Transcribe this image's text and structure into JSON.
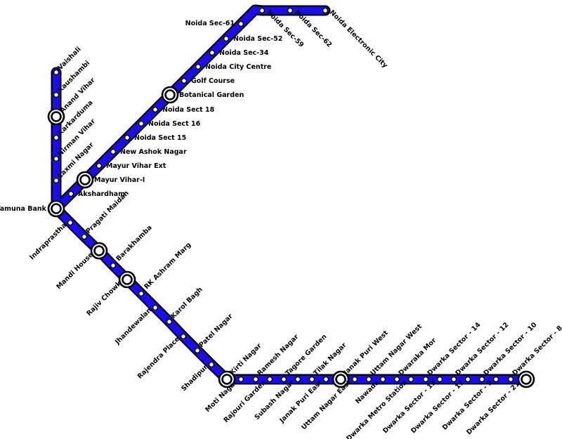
{
  "line_color": "#1a0ef0",
  "line_outline_color": "#000000",
  "stations": [
    {
      "id": "vaishali",
      "name": "Vaishali",
      "interchange": false
    },
    {
      "id": "kaushambi",
      "name": "Kaushambi",
      "interchange": false
    },
    {
      "id": "anand-vihar",
      "name": "Anand Vihar",
      "interchange": true
    },
    {
      "id": "karkarduma",
      "name": "Karkarduma",
      "interchange": false
    },
    {
      "id": "nirman-vihar",
      "name": "Nirman Vihar",
      "interchange": false
    },
    {
      "id": "laxmi-nagar",
      "name": "Laxmi Nagar",
      "interchange": false
    },
    {
      "id": "yamuna-bank",
      "name": "Yamuna Bank",
      "interchange": true
    },
    {
      "id": "akshardham",
      "name": "Akshardham",
      "interchange": false
    },
    {
      "id": "mayur-vihar-i",
      "name": "Mayur Vihar-I",
      "interchange": true
    },
    {
      "id": "mayur-vihar-ext",
      "name": "Mayur Vihar Ext",
      "interchange": false
    },
    {
      "id": "new-ashok-nagar",
      "name": "New Ashok Nagar",
      "interchange": false
    },
    {
      "id": "noida-sect-15",
      "name": "Noida Sect 15",
      "interchange": false
    },
    {
      "id": "noida-sect-16",
      "name": "Noida Sect 16",
      "interchange": false
    },
    {
      "id": "noida-sect-18",
      "name": "Noida Sect 18",
      "interchange": false
    },
    {
      "id": "botanical-garden",
      "name": "Botanical Garden",
      "interchange": true
    },
    {
      "id": "golf-course",
      "name": "Golf Course",
      "interchange": false
    },
    {
      "id": "noida-city-centre",
      "name": "Noida City Centre",
      "interchange": false
    },
    {
      "id": "noida-sec-34",
      "name": "Noida Sec-34",
      "interchange": false
    },
    {
      "id": "noida-sec-52",
      "name": "Noida Sec-52",
      "interchange": false
    },
    {
      "id": "noida-sec-61",
      "name": "Noida Sec-61",
      "interchange": false
    },
    {
      "id": "noida-sec-59",
      "name": "Noida Sec-59",
      "interchange": false
    },
    {
      "id": "noida-sec-62",
      "name": "Noida Sec-62",
      "interchange": false
    },
    {
      "id": "noida-electronic-city",
      "name": "Noida Electronic City",
      "interchange": false
    },
    {
      "id": "indraprastha",
      "name": "Indraprastha",
      "interchange": false
    },
    {
      "id": "pragati-maidan",
      "name": "Pragati Maidan",
      "interchange": false
    },
    {
      "id": "mandi-house",
      "name": "Mandi House",
      "interchange": true
    },
    {
      "id": "barakhamba",
      "name": "Barakhamba",
      "interchange": false
    },
    {
      "id": "rajiv-chowk",
      "name": "Rajiv Chowk",
      "interchange": true
    },
    {
      "id": "rk-ashram-marg",
      "name": "RK Ashram Marg",
      "interchange": false
    },
    {
      "id": "jhandewalan",
      "name": "Jhandewalan",
      "interchange": false
    },
    {
      "id": "karol-bagh",
      "name": "Karol Bagh",
      "interchange": false
    },
    {
      "id": "rajendra-place",
      "name": "Rajendra Place",
      "interchange": false
    },
    {
      "id": "patel-nagar",
      "name": "Patel Nagar",
      "interchange": false
    },
    {
      "id": "shadipur",
      "name": "Shadipur",
      "interchange": false
    },
    {
      "id": "kirti-nagar",
      "name": "Kirti Nagar",
      "interchange": true
    },
    {
      "id": "moti-nagar",
      "name": "Moti Nagar",
      "interchange": false
    },
    {
      "id": "ramesh-nagar",
      "name": "Ramesh Nagar",
      "interchange": false
    },
    {
      "id": "rajouri-garden",
      "name": "Rajouri Garden",
      "interchange": false
    },
    {
      "id": "tagore-garden",
      "name": "Tagore Garden",
      "interchange": false
    },
    {
      "id": "subash-nagar",
      "name": "Subash Nagar",
      "interchange": false
    },
    {
      "id": "tilak-nagar",
      "name": "Tilak Nagar",
      "interchange": false
    },
    {
      "id": "janak-puri-east",
      "name": "Janak Puri East",
      "interchange": false
    },
    {
      "id": "janak-puri-west",
      "name": "Janak Puri West",
      "interchange": true
    },
    {
      "id": "uttam-nagar-east",
      "name": "Uttam Nagar East",
      "interchange": false
    },
    {
      "id": "uttam-nagar-west",
      "name": "Uttam Nagar West",
      "interchange": false
    },
    {
      "id": "nawada",
      "name": "Nawada",
      "interchange": false
    },
    {
      "id": "dwaraka-mor",
      "name": "Dwaraka Mor",
      "interchange": false
    },
    {
      "id": "dwarka-metro-station",
      "name": "Dwarka Metro Station",
      "interchange": false
    },
    {
      "id": "dwarka-sector-14",
      "name": "Dwarka Sector - 14",
      "interchange": false
    },
    {
      "id": "dwarka-sector-13",
      "name": "Dwarka Sector - 13",
      "interchange": false
    },
    {
      "id": "dwarka-sector-12",
      "name": "Dwarka Sector - 12",
      "interchange": false
    },
    {
      "id": "dwarka-sector-11",
      "name": "Dwarka Sector - 11",
      "interchange": false
    },
    {
      "id": "dwarka-sector-10",
      "name": "Dwarka Sector - 10",
      "interchange": false
    },
    {
      "id": "dwarka-sector-9",
      "name": "Dwarka Sector - 9",
      "interchange": false
    },
    {
      "id": "dwarka-sector-8",
      "name": "Dwarka Sector - 8",
      "interchange": false
    },
    {
      "id": "dwarka-sector-21",
      "name": "Dwarka Sector - 21",
      "interchange": true
    }
  ]
}
